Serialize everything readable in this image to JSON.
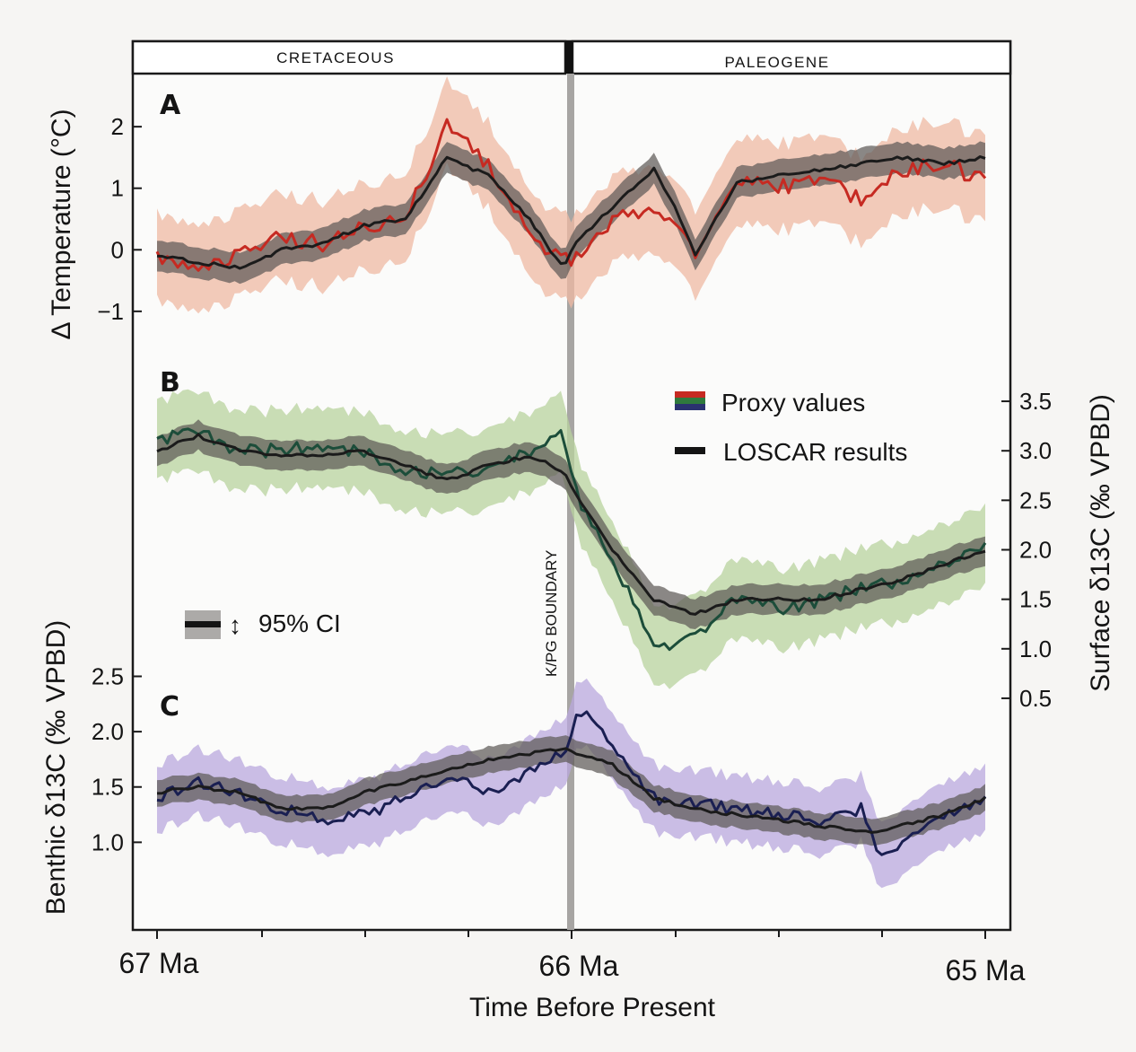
{
  "figure": {
    "eras": [
      "CRETACEOUS",
      "PALEOGENE"
    ],
    "boundary_label": "K/PG BOUNDARY",
    "panel_labels": [
      "A",
      "B",
      "C"
    ],
    "x_axis": {
      "title": "Time Before Present",
      "ticks": [
        "67 Ma",
        "66 Ma",
        "65 Ma"
      ]
    },
    "legend": {
      "proxy": "Proxy values",
      "model": "LOSCAR results",
      "ci": "95% CI"
    }
  },
  "chart_data": [
    {
      "type": "line",
      "panel": "A",
      "ylabel": "Δ Temperature (°C)",
      "xlim": [
        67,
        65
      ],
      "y_ticks": [
        "2",
        "1",
        "0",
        "−1"
      ],
      "ylim": [
        -1.6,
        2.6
      ],
      "colors": {
        "proxy": "#c62a22",
        "proxy_band": "#efb9a3",
        "model": "#1b1b1b",
        "model_band": "#5e5a57"
      },
      "x": [
        67.0,
        66.9,
        66.8,
        66.7,
        66.6,
        66.5,
        66.4,
        66.3,
        66.2,
        66.1,
        66.02,
        65.99,
        65.9,
        65.8,
        65.75,
        65.7,
        65.6,
        65.58,
        65.5,
        65.4,
        65.3,
        65.2,
        65.1,
        65.0
      ],
      "series": [
        {
          "name": "Proxy values",
          "role": "proxy",
          "values": [
            -0.1,
            -0.3,
            -0.1,
            0.2,
            0.1,
            0.4,
            0.5,
            2.0,
            1.4,
            0.2,
            -0.2,
            -0.1,
            0.5,
            0.7,
            0.5,
            -0.1,
            1.0,
            1.1,
            1.0,
            1.2,
            0.8,
            1.3,
            1.4,
            1.1
          ],
          "ci": 0.7
        },
        {
          "name": "LOSCAR results",
          "role": "model",
          "values": [
            -0.1,
            -0.2,
            -0.3,
            0.0,
            0.1,
            0.4,
            0.5,
            1.5,
            1.2,
            0.5,
            -0.3,
            0.1,
            0.7,
            1.3,
            0.7,
            -0.1,
            1.1,
            1.1,
            1.2,
            1.3,
            1.4,
            1.5,
            1.4,
            1.5
          ],
          "ci": 0.25
        }
      ]
    },
    {
      "type": "line",
      "panel": "B",
      "ylabel": "Surface δ13C (‰ VPBD)",
      "xlim": [
        67,
        65
      ],
      "y_ticks": [
        "3.5",
        "3.0",
        "2.5",
        "2.0",
        "1.5",
        "1.0",
        "0.5"
      ],
      "ylim": [
        0.3,
        3.7
      ],
      "colors": {
        "proxy": "#1c4d3a",
        "proxy_band": "#b8d39e",
        "model": "#1b1b1b",
        "model_band": "#5e5a57"
      },
      "x": [
        67.0,
        66.9,
        66.8,
        66.7,
        66.6,
        66.5,
        66.4,
        66.3,
        66.2,
        66.1,
        66.02,
        65.98,
        65.9,
        65.8,
        65.7,
        65.6,
        65.5,
        65.4,
        65.3,
        65.2,
        65.1,
        65.0
      ],
      "series": [
        {
          "name": "Proxy values",
          "role": "proxy",
          "values": [
            3.1,
            3.2,
            3.0,
            3.0,
            3.05,
            3.0,
            2.8,
            2.75,
            2.85,
            3.0,
            3.2,
            2.5,
            1.9,
            1.0,
            1.1,
            1.5,
            1.4,
            1.5,
            1.6,
            1.7,
            1.85,
            2.0
          ],
          "ci": 0.4
        },
        {
          "name": "LOSCAR results",
          "role": "model",
          "values": [
            3.0,
            3.15,
            3.0,
            2.95,
            2.95,
            3.0,
            2.85,
            2.7,
            2.85,
            2.95,
            2.8,
            2.5,
            2.0,
            1.5,
            1.35,
            1.5,
            1.5,
            1.5,
            1.6,
            1.7,
            1.85,
            2.0
          ],
          "ci": 0.15
        }
      ]
    },
    {
      "type": "line",
      "panel": "C",
      "ylabel": "Benthic δ13C (‰ VPBD)",
      "xlim": [
        67,
        65
      ],
      "y_ticks": [
        "2.5",
        "2.0",
        "1.5",
        "1.0"
      ],
      "ylim": [
        0.5,
        2.65
      ],
      "colors": {
        "proxy": "#1a1f52",
        "proxy_band": "#b9a8de",
        "model": "#1b1b1b",
        "model_band": "#5e5a57"
      },
      "x": [
        67.0,
        66.9,
        66.8,
        66.7,
        66.6,
        66.5,
        66.4,
        66.3,
        66.2,
        66.1,
        66.02,
        65.98,
        65.9,
        65.8,
        65.7,
        65.6,
        65.5,
        65.4,
        65.3,
        65.25,
        65.2,
        65.1,
        65.0
      ],
      "series": [
        {
          "name": "Proxy values",
          "role": "proxy",
          "values": [
            1.4,
            1.55,
            1.45,
            1.3,
            1.2,
            1.25,
            1.4,
            1.6,
            1.45,
            1.65,
            1.8,
            2.2,
            1.9,
            1.4,
            1.35,
            1.3,
            1.25,
            1.2,
            1.3,
            0.85,
            1.0,
            1.25,
            1.4
          ],
          "ci": 0.3
        },
        {
          "name": "LOSCAR results",
          "role": "model",
          "values": [
            1.45,
            1.5,
            1.45,
            1.3,
            1.3,
            1.45,
            1.55,
            1.65,
            1.75,
            1.8,
            1.85,
            1.8,
            1.7,
            1.4,
            1.3,
            1.25,
            1.2,
            1.15,
            1.1,
            1.1,
            1.15,
            1.25,
            1.4
          ],
          "ci": 0.12
        }
      ]
    }
  ]
}
